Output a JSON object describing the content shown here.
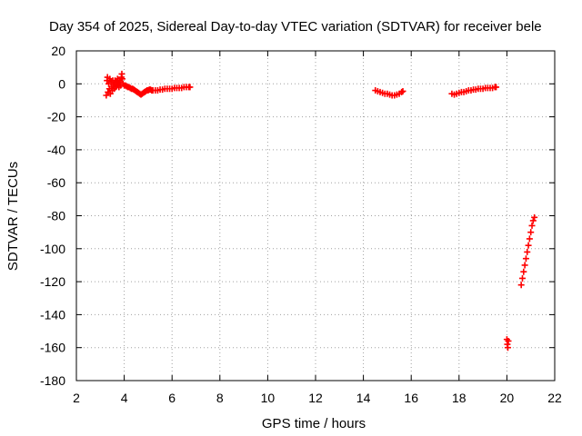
{
  "chart_data": {
    "type": "scatter",
    "title": "Day 354 of 2025, Sidereal Day-to-day VTEC variation (SDTVAR) for receiver bele",
    "xlabel": "GPS time / hours",
    "ylabel": "SDTVAR / TECUs",
    "xlim": [
      2,
      22
    ],
    "ylim": [
      -180,
      20
    ],
    "xticks": [
      2,
      4,
      6,
      8,
      10,
      12,
      14,
      16,
      18,
      20,
      22
    ],
    "yticks": [
      20,
      0,
      -20,
      -40,
      -60,
      -80,
      -100,
      -120,
      -140,
      -160,
      -180
    ],
    "grid": true,
    "marker": "+",
    "colors": {
      "series": "#ff0000",
      "grid": "#a0a0a0",
      "axis": "#000000"
    },
    "series": [
      {
        "name": "SDTVAR",
        "points": [
          [
            3.25,
            -7
          ],
          [
            3.28,
            2
          ],
          [
            3.3,
            4
          ],
          [
            3.32,
            -5
          ],
          [
            3.35,
            0
          ],
          [
            3.38,
            -3
          ],
          [
            3.4,
            3
          ],
          [
            3.42,
            -6
          ],
          [
            3.45,
            1
          ],
          [
            3.48,
            -2
          ],
          [
            3.5,
            -4
          ],
          [
            3.52,
            2
          ],
          [
            3.55,
            -1
          ],
          [
            3.58,
            -3
          ],
          [
            3.6,
            0
          ],
          [
            3.62,
            2
          ],
          [
            3.65,
            -2
          ],
          [
            3.68,
            1
          ],
          [
            3.7,
            -1
          ],
          [
            3.72,
            3
          ],
          [
            3.75,
            0
          ],
          [
            3.78,
            -2
          ],
          [
            3.8,
            2
          ],
          [
            3.82,
            1
          ],
          [
            3.85,
            -1
          ],
          [
            3.88,
            4
          ],
          [
            3.9,
            6
          ],
          [
            3.92,
            3
          ],
          [
            3.95,
            0
          ],
          [
            4.0,
            -1
          ],
          [
            4.05,
            -1
          ],
          [
            4.1,
            -1.5
          ],
          [
            4.15,
            -2
          ],
          [
            4.2,
            -2
          ],
          [
            4.25,
            -2.5
          ],
          [
            4.3,
            -3
          ],
          [
            4.35,
            -3
          ],
          [
            4.4,
            -3.5
          ],
          [
            4.45,
            -4
          ],
          [
            4.5,
            -4.5
          ],
          [
            4.55,
            -5
          ],
          [
            4.6,
            -5.5
          ],
          [
            4.65,
            -6
          ],
          [
            4.7,
            -6.5
          ],
          [
            4.75,
            -6
          ],
          [
            4.8,
            -5.5
          ],
          [
            4.85,
            -5
          ],
          [
            4.9,
            -4.5
          ],
          [
            4.95,
            -4
          ],
          [
            5.0,
            -4
          ],
          [
            5.05,
            -3.5
          ],
          [
            5.1,
            -3.5
          ],
          [
            5.15,
            -4
          ],
          [
            5.2,
            -4
          ],
          [
            5.3,
            -4
          ],
          [
            5.4,
            -4
          ],
          [
            5.5,
            -3.5
          ],
          [
            5.6,
            -3.5
          ],
          [
            5.7,
            -3
          ],
          [
            5.8,
            -3
          ],
          [
            5.9,
            -3
          ],
          [
            6.0,
            -3
          ],
          [
            6.1,
            -2.5
          ],
          [
            6.2,
            -2.5
          ],
          [
            6.3,
            -2.5
          ],
          [
            6.4,
            -2.5
          ],
          [
            6.5,
            -2
          ],
          [
            6.6,
            -2
          ],
          [
            6.7,
            -2
          ],
          [
            6.75,
            -2
          ],
          [
            14.5,
            -4
          ],
          [
            14.6,
            -4.5
          ],
          [
            14.7,
            -5
          ],
          [
            14.8,
            -5.5
          ],
          [
            14.9,
            -6
          ],
          [
            15.0,
            -6
          ],
          [
            15.1,
            -6.5
          ],
          [
            15.2,
            -7
          ],
          [
            15.3,
            -7
          ],
          [
            15.4,
            -6.5
          ],
          [
            15.5,
            -6
          ],
          [
            15.6,
            -5
          ],
          [
            15.65,
            -4.5
          ],
          [
            17.7,
            -6
          ],
          [
            17.8,
            -6.5
          ],
          [
            17.9,
            -6
          ],
          [
            18.0,
            -5.5
          ],
          [
            18.1,
            -5
          ],
          [
            18.2,
            -5
          ],
          [
            18.3,
            -4.5
          ],
          [
            18.4,
            -4
          ],
          [
            18.5,
            -4
          ],
          [
            18.6,
            -3.5
          ],
          [
            18.7,
            -3.5
          ],
          [
            18.8,
            -3
          ],
          [
            18.9,
            -3
          ],
          [
            19.0,
            -3
          ],
          [
            19.1,
            -2.5
          ],
          [
            19.2,
            -2.5
          ],
          [
            19.3,
            -2.5
          ],
          [
            19.4,
            -2.5
          ],
          [
            19.5,
            -2
          ],
          [
            19.55,
            -2
          ],
          [
            20.0,
            -155
          ],
          [
            20.02,
            -158
          ],
          [
            20.04,
            -160
          ],
          [
            20.06,
            -156
          ],
          [
            20.6,
            -122
          ],
          [
            20.65,
            -118
          ],
          [
            20.7,
            -114
          ],
          [
            20.75,
            -110
          ],
          [
            20.8,
            -106
          ],
          [
            20.85,
            -102
          ],
          [
            20.9,
            -98
          ],
          [
            20.95,
            -94
          ],
          [
            21.0,
            -90
          ],
          [
            21.05,
            -86
          ],
          [
            21.1,
            -83
          ],
          [
            21.15,
            -81
          ]
        ]
      }
    ]
  }
}
